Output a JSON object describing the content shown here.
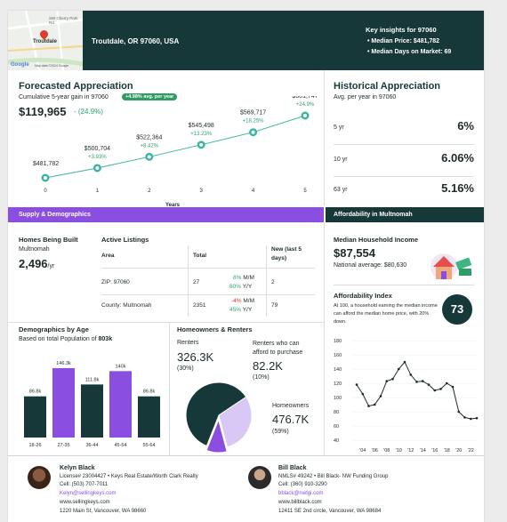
{
  "header": {
    "map": {
      "label_street": "SW Cherry Park Rd",
      "label_city": "Troutdale",
      "brand": "Google",
      "copyright": "Map data ©2024 Google"
    },
    "location": "Troutdale, OR 97060, USA",
    "insights": {
      "title": "Key insights for 97060",
      "items": [
        "• Median Price: $481,782",
        "• Median Days on Market: 69"
      ]
    }
  },
  "forecast": {
    "title": "Forecasted Appreciation",
    "subtitle": "Cumulative 5-year gain in 97060",
    "badge": "+4.98% avg. per year",
    "value": "$119,965",
    "percent": "- (24.9%)",
    "xlabel": "Years"
  },
  "historical": {
    "title": "Historical Appreciation",
    "subtitle": "Avg. per year in 97060",
    "rows": [
      {
        "label": "5 yr",
        "value": "6%"
      },
      {
        "label": "10 yr",
        "value": "6.06%"
      },
      {
        "label": "63 yr",
        "value": "5.16%"
      }
    ]
  },
  "bands": {
    "supply": "Supply & Demographics",
    "afford": "Affordability in Multnomah"
  },
  "homes": {
    "title": "Homes Being Built",
    "sub": "Multnomah",
    "value": "2,496",
    "unit": "/yr"
  },
  "listings": {
    "title": "Active Listings",
    "headers": [
      "Area",
      "Total",
      "New (last 5 days)"
    ],
    "rows": [
      {
        "area": "ZIP: 97060",
        "total": "27",
        "mm": "8%",
        "mm_label": "M/M",
        "yy": "80%",
        "yy_label": "Y/Y",
        "new": "2",
        "mm_color": "#2fa36b",
        "yy_color": "#2fa36b"
      },
      {
        "area": "County: Multnomah",
        "total": "2351",
        "mm": "-4%",
        "mm_label": "M/M",
        "yy": "45%",
        "yy_label": "Y/Y",
        "new": "79",
        "mm_color": "#d93838",
        "yy_color": "#2fa36b"
      }
    ]
  },
  "income": {
    "title": "Median Household Income",
    "value": "$87,554",
    "national": "National average: $80,630"
  },
  "afford_index": {
    "title": "Affordability Index",
    "desc": "At 100, a household earning the median income can afford the median home price, with 20% down.",
    "value": "73"
  },
  "demographics": {
    "title": "Demographics by Age",
    "sub_prefix": "Based on total Population of ",
    "population": "803k"
  },
  "owners": {
    "title": "Homeowners & Renters",
    "renters_label": "Renters",
    "renters_value": "326.3K",
    "renters_pct": "(30%)",
    "afford_label": "Renters who can afford to purchase",
    "afford_value": "82.2K",
    "afford_pct": "(10%)",
    "owners_label": "Homeowners",
    "owners_value": "476.7K",
    "owners_pct": "(59%)"
  },
  "agents": [
    {
      "name": "Kelyn Black",
      "line1": "License# 23004427 • Keys Real Estate/Worth Clark Realty",
      "cell": "Cell: (503) 707-7011",
      "email": "Kelyn@sellingkeys.com",
      "web": "www.sellingkeys.com",
      "addr": "1220 Main St, Vancouver, WA 98660"
    },
    {
      "name": "Bill Black",
      "line1": "NMLS# 49242 • Bill Black- NW Funding Group",
      "cell": "Cell: (360) 910-3290",
      "email": "bblack@nwfgi.com",
      "web": "www.billblack.com",
      "addr": "12411 SE 2nd circle, Vancouver, WA 98684"
    }
  ],
  "colors": {
    "dark": "#163838",
    "purple": "#8a4fe0",
    "lavender": "#d9c8f5",
    "line": "#3bb5a0",
    "green": "#2fa36b",
    "red": "#d93838"
  },
  "chart_data": [
    {
      "type": "line",
      "x": [
        0,
        1,
        2,
        3,
        4,
        5
      ],
      "values": [
        481782,
        500704,
        522364,
        545498,
        569717,
        601747
      ],
      "value_labels": [
        "$481,782",
        "$500,704",
        "$522,364",
        "$545,498",
        "$569,717",
        "$601,747"
      ],
      "pct_labels": [
        "",
        "+3.93%",
        "+8.42%",
        "+13.23%",
        "+18.25%",
        "+24.9%"
      ],
      "xlabel": "Years"
    },
    {
      "type": "bar",
      "categories": [
        "18-26",
        "27-35",
        "36-44",
        "45-54",
        "55-64"
      ],
      "values": [
        86.8,
        146.3,
        111.8,
        140,
        86.8
      ],
      "labels": [
        "86.8k",
        "146.3k",
        "111.8k",
        "140k",
        "86.8k"
      ],
      "colors": [
        "#163838",
        "#8a4fe0",
        "#163838",
        "#8a4fe0",
        "#163838"
      ]
    },
    {
      "type": "pie",
      "slices": [
        {
          "name": "Homeowners",
          "value": 59,
          "color": "#163838"
        },
        {
          "name": "Renters",
          "value": 30,
          "color": "#d9c8f5"
        },
        {
          "name": "Renters who can afford to purchase",
          "value": 10,
          "color": "#8a4fe0"
        }
      ]
    },
    {
      "type": "line",
      "ylim": [
        40,
        180
      ],
      "yticks": [
        40,
        60,
        80,
        100,
        120,
        140,
        160,
        180
      ],
      "xticks": [
        "'04",
        "'06",
        "'08",
        "'10",
        "'12",
        "'14",
        "'16",
        "'18",
        "'20",
        "'22"
      ],
      "x": [
        2003,
        2004,
        2005,
        2006,
        2007,
        2008,
        2009,
        2010,
        2011,
        2012,
        2013,
        2014,
        2015,
        2016,
        2017,
        2018,
        2019,
        2020,
        2021,
        2022,
        2023
      ],
      "values": [
        118,
        105,
        88,
        90,
        102,
        123,
        126,
        140,
        150,
        132,
        122,
        123,
        118,
        110,
        112,
        120,
        115,
        80,
        72,
        70,
        71
      ]
    }
  ]
}
